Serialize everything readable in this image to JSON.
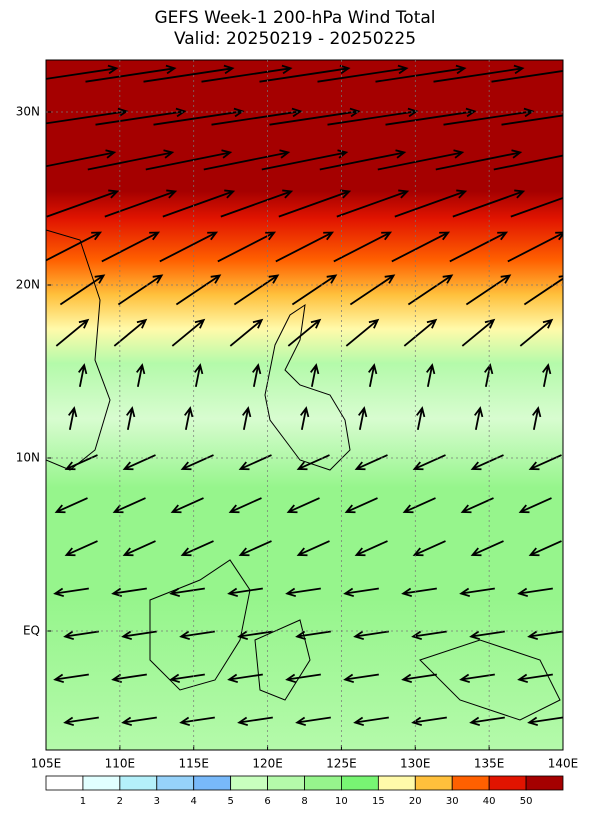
{
  "title": "GEFS Week-1 200-hPa Wind Total",
  "subtitle": "Valid: 20250219 - 20250225",
  "map": {
    "lon_labels": [
      "105E",
      "110E",
      "115E",
      "120E",
      "125E",
      "130E",
      "135E",
      "140E"
    ],
    "lat_labels": [
      "30N",
      "20N",
      "10N",
      "EQ"
    ]
  },
  "colorbar": {
    "labels": [
      1,
      2,
      3,
      4,
      5,
      6,
      8,
      10,
      15,
      20,
      30,
      40,
      50
    ],
    "colors": [
      "#ffffff",
      "#e1ffff",
      "#b4f0fa",
      "#96d2fa",
      "#78b9fa",
      "#c8ffbe",
      "#b4faaa",
      "#96f58c",
      "#78f573",
      "#fffaaa",
      "#ffc03c",
      "#ff6000",
      "#e11400",
      "#a50000"
    ]
  }
}
